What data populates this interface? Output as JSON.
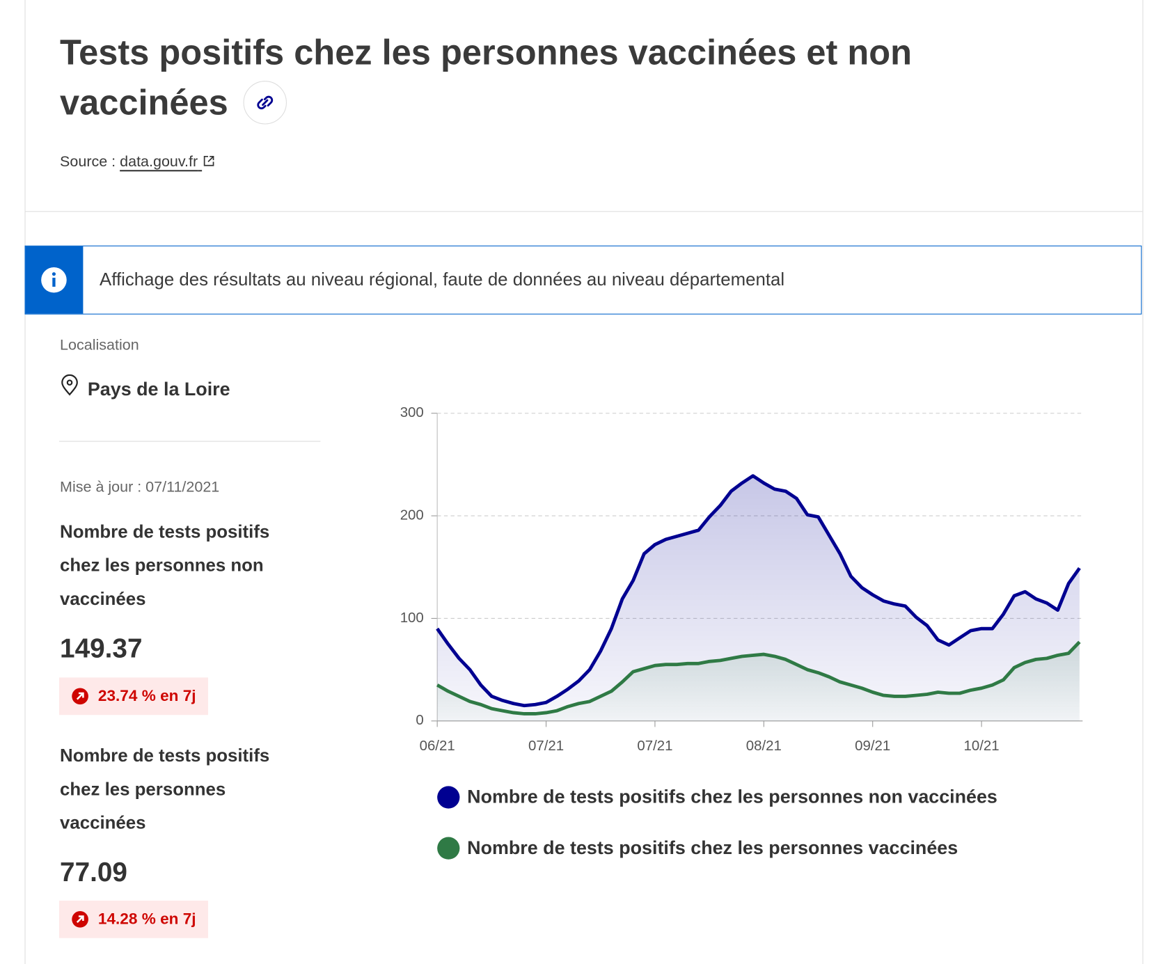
{
  "header": {
    "title": "Tests positifs chez les personnes vaccinées et non vaccinées",
    "source_label": "Source :",
    "source_link": "data.gouv.fr"
  },
  "banner": {
    "text": "Affichage des résultats au niveau régional, faute de données au niveau départemental"
  },
  "sidebar": {
    "location_label": "Localisation",
    "location": "Pays de la Loire",
    "update": "Mise à jour : 07/11/2021",
    "indicators": [
      {
        "label": "Nombre de tests positifs chez les personnes non vaccinées",
        "value": 149.37,
        "change": "23.74 % en 7j"
      },
      {
        "label": "Nombre de tests positifs chez les personnes vaccinées",
        "value": 77.09,
        "change": "14.28 % en 7j"
      }
    ]
  },
  "chart_data": {
    "type": "line",
    "categories": [
      "06/21",
      null,
      null,
      null,
      null,
      null,
      null,
      null,
      null,
      null,
      "07/21",
      null,
      null,
      null,
      null,
      null,
      null,
      null,
      null,
      null,
      "07/21",
      null,
      null,
      null,
      null,
      null,
      null,
      null,
      null,
      null,
      "08/21",
      null,
      null,
      null,
      null,
      null,
      null,
      null,
      null,
      null,
      "09/21",
      null,
      null,
      null,
      null,
      null,
      null,
      null,
      null,
      null,
      "10/21",
      null,
      null,
      null,
      null,
      null,
      null,
      null,
      null,
      null
    ],
    "series": [
      {
        "name": "Nombre de tests positifs chez les personnes non vaccinées",
        "color": "#000091",
        "values": [
          90,
          75,
          61,
          50,
          35,
          24,
          20,
          17,
          15,
          16,
          18,
          24,
          31,
          39,
          50,
          68,
          90,
          119,
          137,
          163,
          172,
          177,
          180,
          183,
          186,
          199,
          210,
          224,
          232,
          239,
          232,
          226,
          224,
          217,
          201,
          199,
          181,
          163,
          141,
          130,
          123,
          117,
          114,
          112,
          101,
          93,
          79,
          74,
          81,
          88,
          90,
          90,
          104,
          122,
          126,
          119,
          115,
          108,
          134,
          149
        ]
      },
      {
        "name": "Nombre de tests positifs chez les personnes vaccinées",
        "color": "#2f7a45",
        "values": [
          35,
          29,
          24,
          19,
          16,
          12,
          10,
          8,
          7,
          7,
          8,
          10,
          14,
          17,
          19,
          24,
          29,
          38,
          48,
          51,
          54,
          55,
          55,
          56,
          56,
          58,
          59,
          61,
          63,
          64,
          65,
          63,
          60,
          55,
          50,
          47,
          43,
          38,
          35,
          32,
          28,
          25,
          24,
          24,
          25,
          26,
          28,
          27,
          27,
          30,
          32,
          35,
          40,
          52,
          57,
          60,
          61,
          64,
          66,
          77
        ]
      }
    ],
    "ylim": [
      0,
      300
    ],
    "yticks": [
      0,
      100,
      200,
      300
    ],
    "grid": true
  }
}
